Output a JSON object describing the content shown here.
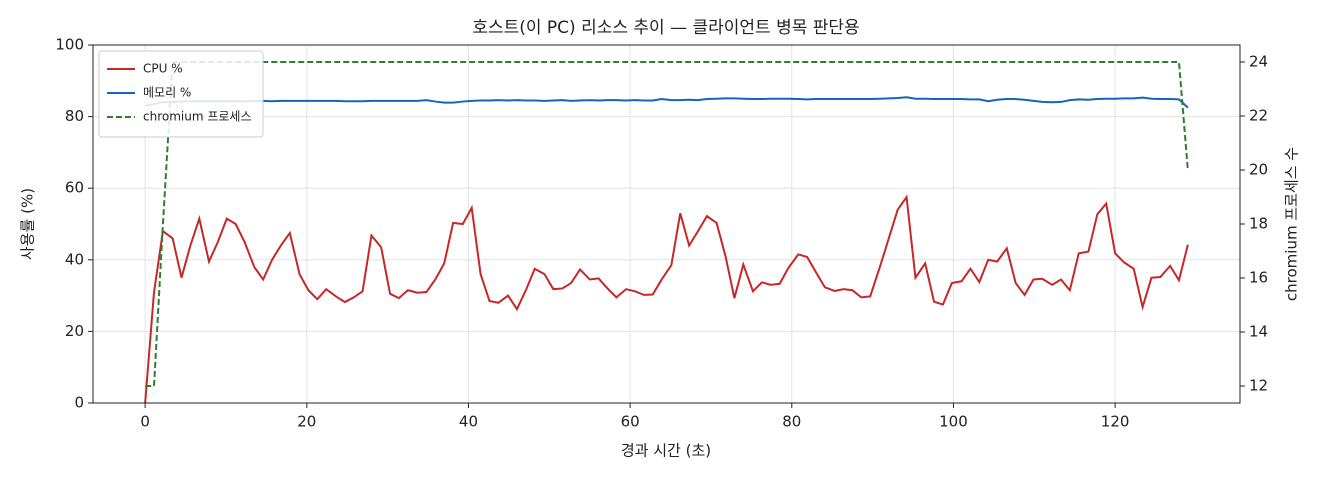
{
  "chart_data": {
    "type": "line",
    "title": "호스트(이 PC) 리소스 추이 — 클라이언트 병목 판단용",
    "xlabel": "경과 시간 (초)",
    "ylabel": "사용률 (%)",
    "y2label": "chromium 프로세스 수",
    "x": [
      0,
      1.1,
      2.2,
      3.4,
      4.5,
      5.6,
      6.7,
      7.9,
      9.0,
      10.1,
      11.2,
      12.3,
      13.5,
      14.6,
      15.7,
      16.8,
      17.9,
      19.1,
      20.2,
      21.3,
      22.4,
      23.6,
      24.7,
      25.8,
      26.9,
      28.0,
      29.2,
      30.3,
      31.4,
      32.5,
      33.7,
      34.8,
      35.9,
      37.0,
      38.1,
      39.3,
      40.4,
      41.5,
      42.6,
      43.7,
      44.9,
      46.0,
      47.1,
      48.2,
      49.4,
      50.5,
      51.6,
      52.7,
      53.8,
      55.0,
      56.1,
      57.2,
      58.3,
      59.5,
      60.6,
      61.7,
      62.8,
      63.9,
      65.1,
      66.2,
      67.3,
      68.4,
      69.5,
      70.7,
      71.8,
      72.9,
      74.0,
      75.2,
      76.3,
      77.4,
      78.5,
      79.6,
      80.8,
      81.9,
      83.0,
      84.1,
      85.3,
      86.4,
      87.5,
      88.6,
      89.7,
      90.9,
      92.0,
      93.1,
      94.2,
      95.3,
      96.5,
      97.6,
      98.7,
      99.8,
      101.0,
      102.1,
      103.2,
      104.3,
      105.4,
      106.6,
      107.7,
      108.8,
      109.9,
      111.0,
      112.2,
      113.3,
      114.4,
      115.5,
      116.7,
      117.8,
      118.9,
      120.0,
      121.1,
      122.3,
      123.4,
      124.5,
      125.6,
      126.8,
      127.9,
      129.0
    ],
    "series": [
      {
        "name": "CPU %",
        "color": "#c62828",
        "linestyle": "solid",
        "axis": "y",
        "values": [
          0,
          31,
          48,
          46,
          35,
          44,
          51.5,
          39.5,
          45,
          51.5,
          50,
          45,
          38,
          34.5,
          40,
          44,
          47.5,
          36,
          31.5,
          29,
          31.8,
          29.8,
          28.2,
          29.5,
          31.2,
          46.8,
          43.5,
          30.5,
          29.3,
          31.5,
          30.8,
          31,
          34.5,
          39,
          50.3,
          50,
          54.5,
          36,
          28.5,
          28,
          30,
          26.2,
          31.5,
          37.5,
          36,
          31.8,
          32,
          33.5,
          37.3,
          34.5,
          34.8,
          32,
          29.5,
          31.8,
          31.2,
          30.2,
          30.3,
          34.5,
          38.5,
          53,
          44,
          48,
          52.2,
          50.3,
          41,
          29.3,
          38.7,
          31.2,
          33.7,
          33,
          33.3,
          37.8,
          41.5,
          40.8,
          36.5,
          32.3,
          31.3,
          31.8,
          31.5,
          29.5,
          29.8,
          38,
          46,
          54,
          57.5,
          35,
          39,
          28.3,
          27.5,
          33.5,
          34,
          37.5,
          33.8,
          40,
          39.5,
          43.2,
          33.5,
          30.2,
          34.5,
          34.7,
          33,
          34.5,
          31.5,
          41.8,
          42.3,
          52.7,
          55.7,
          41.8,
          39.3,
          37.5,
          26.8,
          35,
          35.2,
          38.3,
          34.3,
          44.2
        ]
      },
      {
        "name": "메모리 %",
        "color": "#1565c0",
        "linestyle": "solid",
        "axis": "y",
        "values": [
          83,
          83.5,
          84,
          84.1,
          84.2,
          84.3,
          84.3,
          84.3,
          84.3,
          84.3,
          84.3,
          84.3,
          84.4,
          84.4,
          84.3,
          84.4,
          84.4,
          84.4,
          84.4,
          84.4,
          84.4,
          84.4,
          84.3,
          84.3,
          84.3,
          84.4,
          84.4,
          84.4,
          84.4,
          84.4,
          84.4,
          84.6,
          84.2,
          83.9,
          83.9,
          84.2,
          84.4,
          84.5,
          84.5,
          84.6,
          84.5,
          84.6,
          84.5,
          84.5,
          84.4,
          84.5,
          84.6,
          84.4,
          84.5,
          84.6,
          84.5,
          84.6,
          84.6,
          84.5,
          84.6,
          84.5,
          84.5,
          84.9,
          84.6,
          84.6,
          84.7,
          84.6,
          84.9,
          85.0,
          85.1,
          85.1,
          85.0,
          84.9,
          84.9,
          85.0,
          85.0,
          85.0,
          84.9,
          84.8,
          84.9,
          84.9,
          84.9,
          84.9,
          84.9,
          84.9,
          84.9,
          85.0,
          85.1,
          85.2,
          85.4,
          85.0,
          85.0,
          84.9,
          84.9,
          84.9,
          84.9,
          84.8,
          84.8,
          84.3,
          84.7,
          84.9,
          84.9,
          84.7,
          84.4,
          84.1,
          84.0,
          84.1,
          84.6,
          84.8,
          84.7,
          84.9,
          85.0,
          85.0,
          85.1,
          85.1,
          85.3,
          85.0,
          84.9,
          84.9,
          84.8,
          82.5
        ]
      },
      {
        "name": "chromium 프로세스",
        "color": "#2e7d32",
        "linestyle": "dashed",
        "axis": "y2",
        "values": [
          12,
          12,
          18,
          24,
          24,
          24,
          24,
          24,
          24,
          24,
          24,
          24,
          24,
          24,
          24,
          24,
          24,
          24,
          24,
          24,
          24,
          24,
          24,
          24,
          24,
          24,
          24,
          24,
          24,
          24,
          24,
          24,
          24,
          24,
          24,
          24,
          24,
          24,
          24,
          24,
          24,
          24,
          24,
          24,
          24,
          24,
          24,
          24,
          24,
          24,
          24,
          24,
          24,
          24,
          24,
          24,
          24,
          24,
          24,
          24,
          24,
          24,
          24,
          24,
          24,
          24,
          24,
          24,
          24,
          24,
          24,
          24,
          24,
          24,
          24,
          24,
          24,
          24,
          24,
          24,
          24,
          24,
          24,
          24,
          24,
          24,
          24,
          24,
          24,
          24,
          24,
          24,
          24,
          24,
          24,
          24,
          24,
          24,
          24,
          24,
          24,
          24,
          24,
          24,
          24,
          24,
          24,
          24,
          24,
          24,
          24,
          24,
          24,
          24,
          24,
          20
        ]
      }
    ],
    "xlim": [
      -6.45,
      135.45
    ],
    "xticks": [
      0,
      20,
      40,
      60,
      80,
      100,
      120
    ],
    "ylim": [
      0,
      100
    ],
    "yticks": [
      0,
      20,
      40,
      60,
      80,
      100
    ],
    "y2lim": [
      11.37,
      24.63
    ],
    "y2ticks": [
      12,
      14,
      16,
      18,
      20,
      22,
      24
    ],
    "grid": true,
    "legend": "upper left"
  }
}
